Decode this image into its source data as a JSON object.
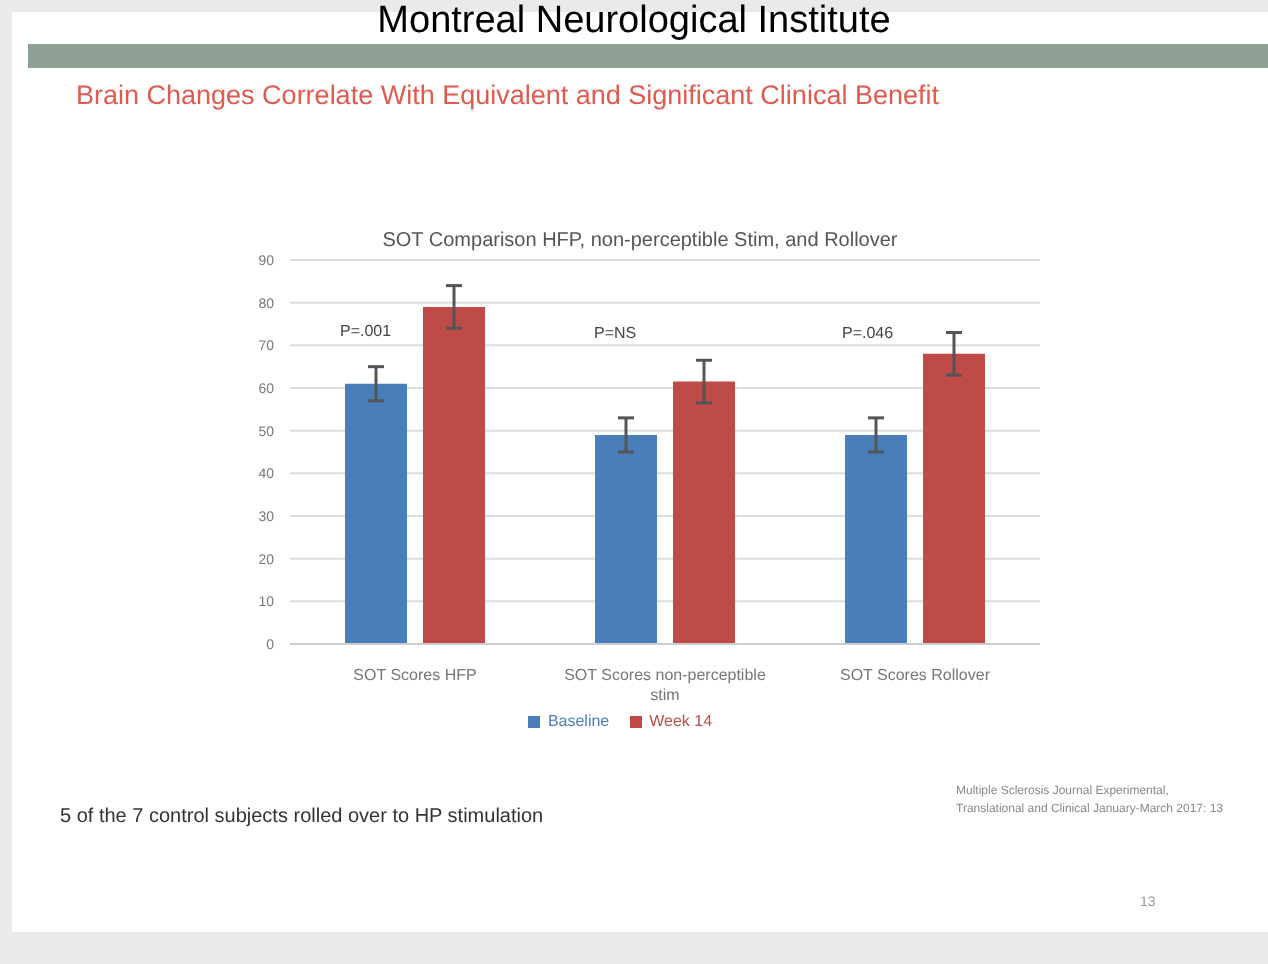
{
  "chart_data": {
    "type": "bar",
    "title": "Brain Changes Correlate With Equivalent and Significant Clinical Benefit",
    "subtitle": "SOT Comparison HFP,  non-perceptible Stim,  and Rollover",
    "categories": [
      "SOT Scores HFP",
      "SOT Scores non-perceptible stim",
      "SOT Scores Rollover"
    ],
    "series": [
      {
        "name": "Baseline",
        "color": "#4a7ebb",
        "values": [
          61,
          49,
          49
        ],
        "errors": [
          4,
          4,
          4
        ]
      },
      {
        "name": "Week  14",
        "color": "#be4b48",
        "values": [
          79,
          61.5,
          68
        ],
        "errors": [
          5,
          5,
          5
        ]
      }
    ],
    "ylim": [
      0,
      90
    ],
    "yticks": [
      0,
      10,
      20,
      30,
      40,
      50,
      60,
      70,
      80,
      90
    ],
    "grid": "y",
    "legend": "bottom",
    "annotations": [
      "Montreal Neurological Institute",
      "P=.001",
      "P=NS",
      "P=.046",
      "5 of the 7 control subjects rolled over to HP stimulation",
      "Multiple Sclerosis Journal Experimental, Translational and Clinical January-March 2017: 13",
      "13"
    ]
  }
}
